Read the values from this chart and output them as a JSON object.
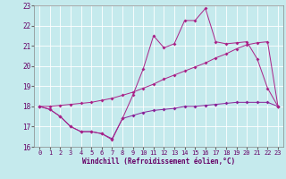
{
  "xlabel": "Windchill (Refroidissement éolien,°C)",
  "xlim": [
    -0.5,
    23.5
  ],
  "ylim": [
    16,
    23
  ],
  "yticks": [
    16,
    17,
    18,
    19,
    20,
    21,
    22,
    23
  ],
  "xticks": [
    0,
    1,
    2,
    3,
    4,
    5,
    6,
    7,
    8,
    9,
    10,
    11,
    12,
    13,
    14,
    15,
    16,
    17,
    18,
    19,
    20,
    21,
    22,
    23
  ],
  "bg_color": "#c5eaed",
  "line_color": "#aa2288",
  "line_color2": "#882299",
  "grid_color": "#ffffff",
  "series1_x": [
    0,
    1,
    2,
    3,
    4,
    5,
    6,
    7,
    8,
    9,
    10,
    11,
    12,
    13,
    14,
    15,
    16,
    17,
    18,
    19,
    20,
    21,
    22,
    23
  ],
  "series1_y": [
    18.0,
    17.85,
    17.5,
    17.0,
    16.75,
    16.75,
    16.65,
    16.4,
    17.4,
    17.55,
    17.7,
    17.8,
    17.85,
    17.9,
    18.0,
    18.0,
    18.05,
    18.1,
    18.15,
    18.2,
    18.2,
    18.2,
    18.2,
    18.0
  ],
  "series2_x": [
    0,
    1,
    2,
    3,
    4,
    5,
    6,
    7,
    8,
    9,
    10,
    11,
    12,
    13,
    14,
    15,
    16,
    17,
    18,
    19,
    20,
    21,
    22,
    23
  ],
  "series2_y": [
    18.0,
    18.0,
    18.05,
    18.1,
    18.15,
    18.2,
    18.3,
    18.4,
    18.55,
    18.7,
    18.9,
    19.1,
    19.35,
    19.55,
    19.75,
    19.95,
    20.15,
    20.4,
    20.6,
    20.85,
    21.05,
    21.15,
    21.2,
    18.0
  ],
  "series3_x": [
    0,
    1,
    2,
    3,
    4,
    5,
    6,
    7,
    8,
    9,
    10,
    11,
    12,
    13,
    14,
    15,
    16,
    17,
    18,
    19,
    20,
    21,
    22,
    23
  ],
  "series3_y": [
    18.0,
    17.85,
    17.5,
    17.0,
    16.75,
    16.75,
    16.65,
    16.35,
    17.4,
    18.55,
    19.85,
    21.5,
    20.9,
    21.1,
    22.25,
    22.25,
    22.85,
    21.2,
    21.1,
    21.15,
    21.2,
    20.35,
    18.9,
    18.0
  ]
}
